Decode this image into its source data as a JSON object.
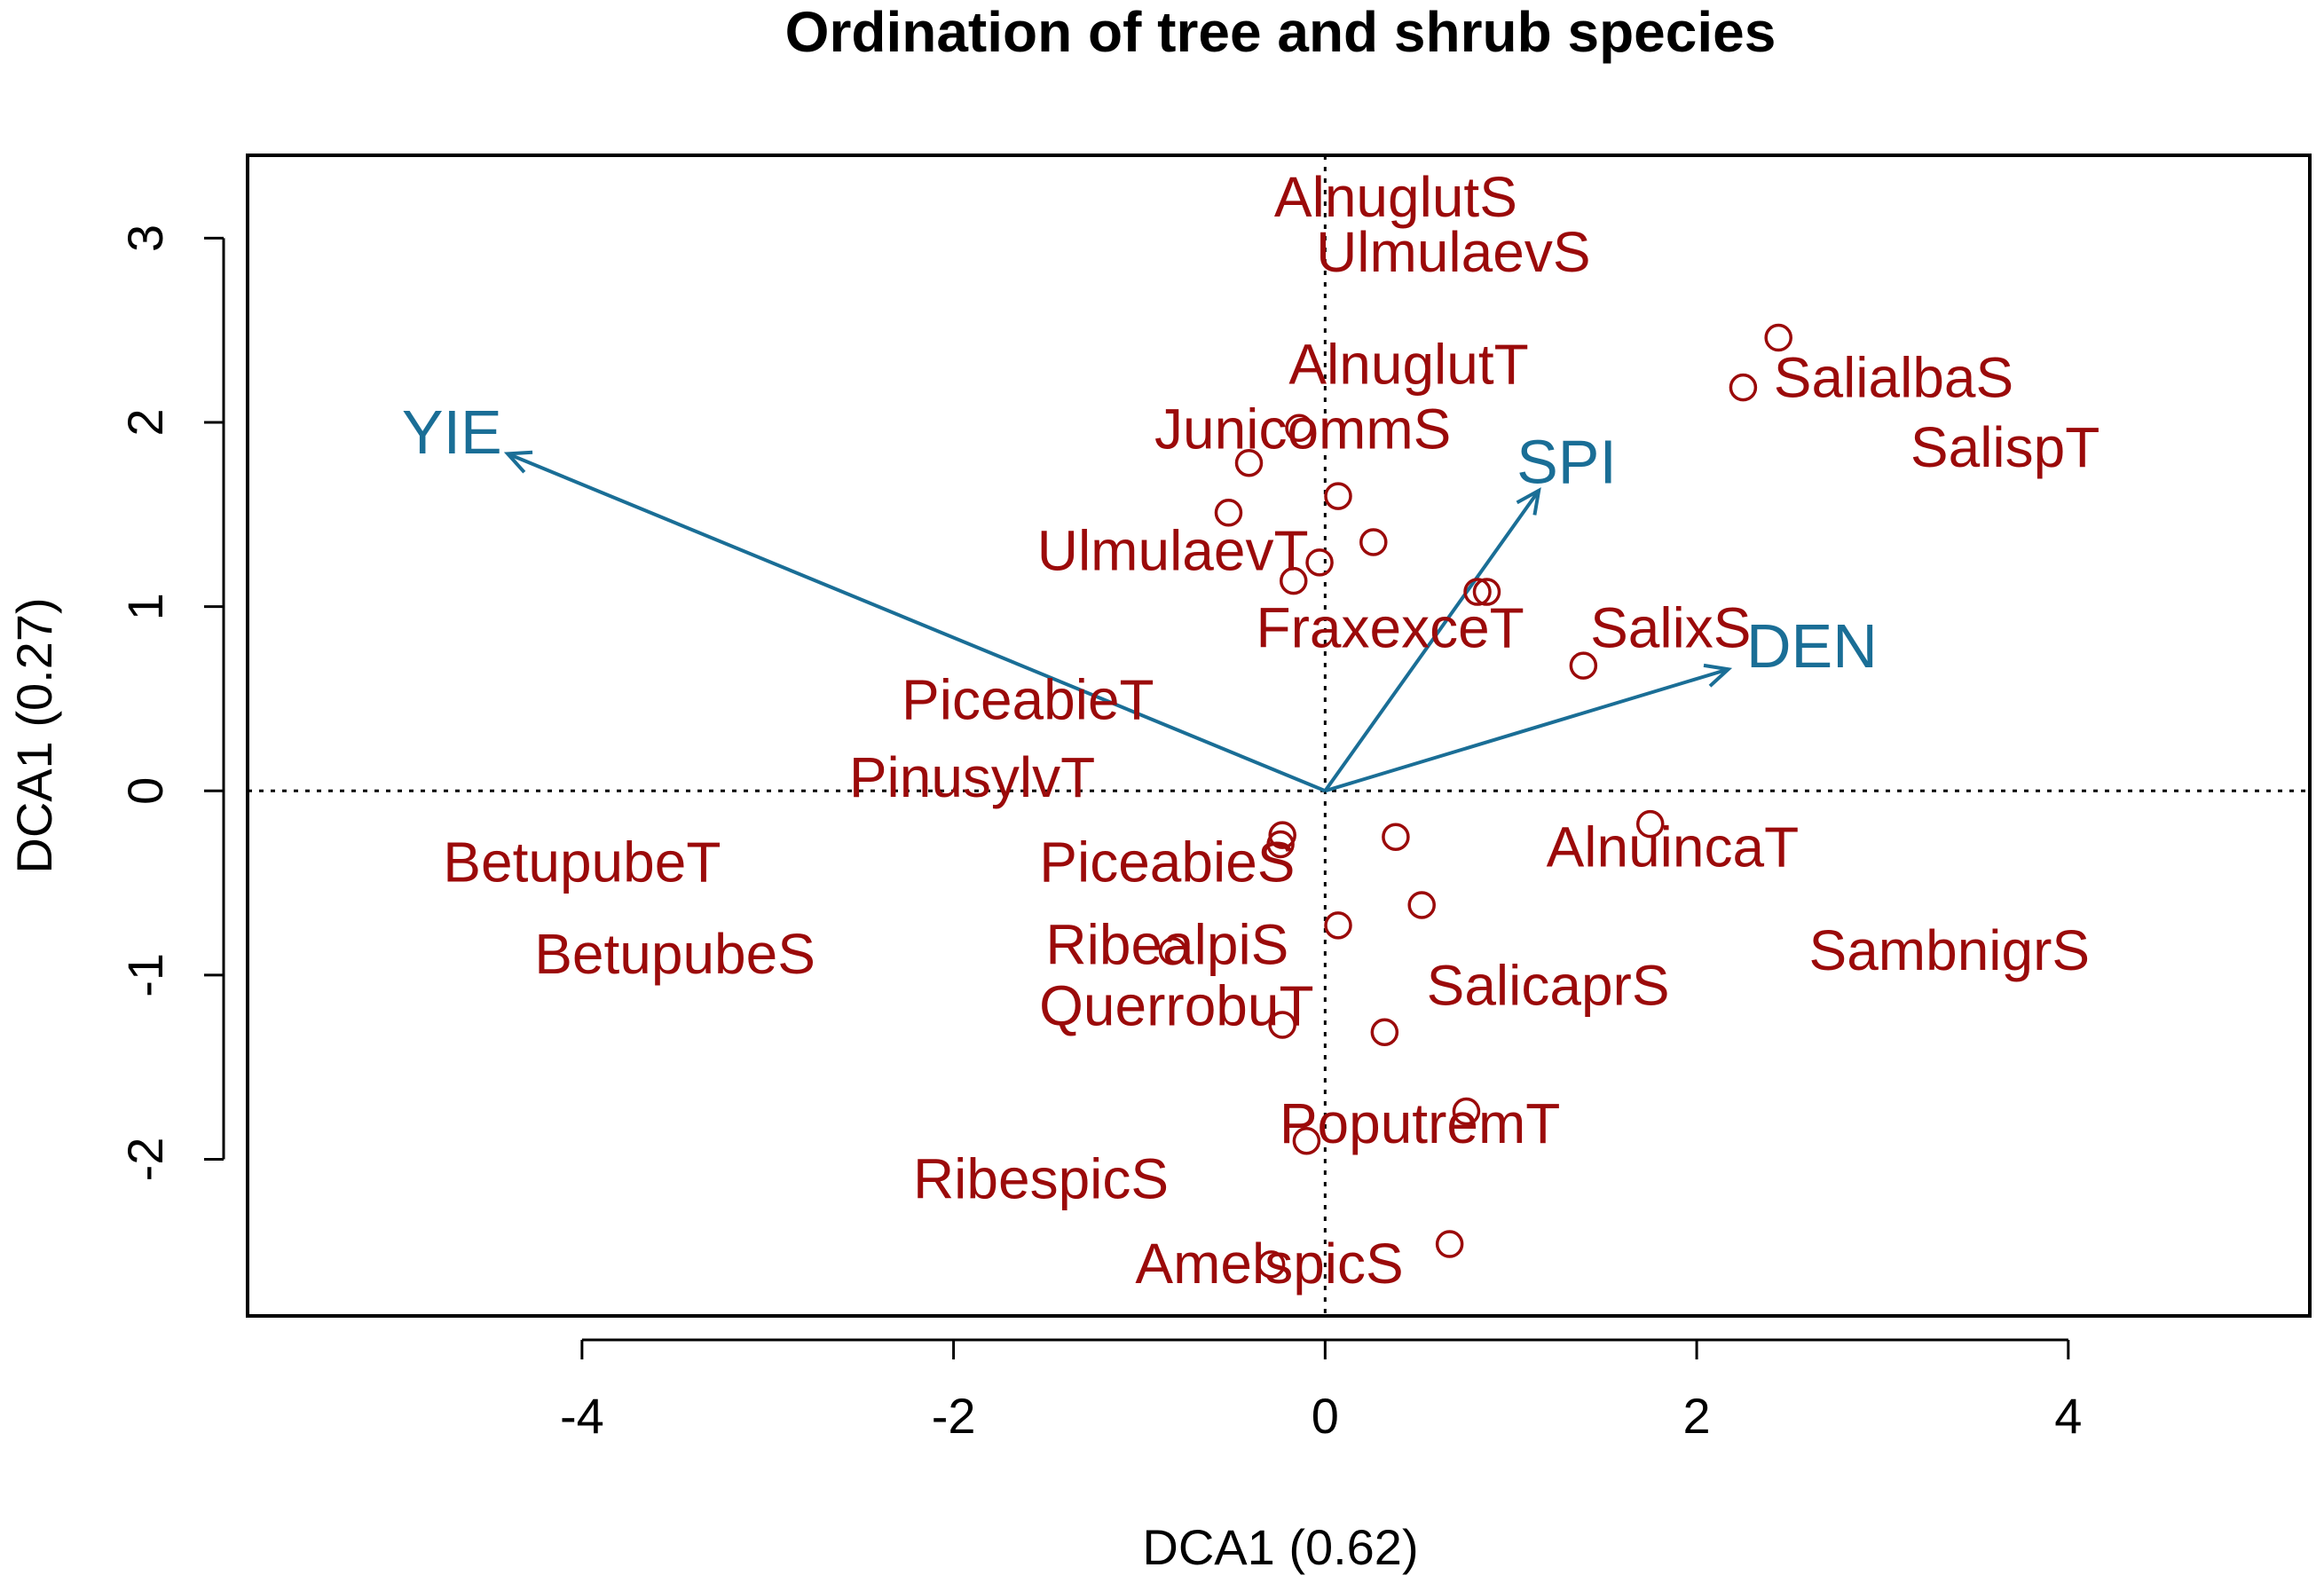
{
  "chart_data": {
    "type": "scatter",
    "title": "Ordination of tree and shrub species",
    "xlabel": "DCA1 (0.62)",
    "ylabel": "DCA1 (0.27)",
    "xlim": [
      -5.8,
      5.3
    ],
    "ylim": [
      -2.85,
      3.45
    ],
    "xticks": [
      -4,
      -2,
      0,
      2,
      4
    ],
    "yticks": [
      -2,
      -1,
      0,
      1,
      2,
      3
    ],
    "origin_lines": true,
    "species_color": "#9B0A0A",
    "vector_color": "#1A6E96",
    "sites": [
      {
        "x": 2.44,
        "y": 2.46
      },
      {
        "x": 2.25,
        "y": 2.19
      },
      {
        "x": -0.14,
        "y": 1.97
      },
      {
        "x": -0.41,
        "y": 1.78
      },
      {
        "x": 0.07,
        "y": 1.6
      },
      {
        "x": -0.52,
        "y": 1.51
      },
      {
        "x": 0.26,
        "y": 1.35
      },
      {
        "x": -0.03,
        "y": 1.24
      },
      {
        "x": -0.17,
        "y": 1.14
      },
      {
        "x": 0.82,
        "y": 1.08
      },
      {
        "x": 0.87,
        "y": 1.08
      },
      {
        "x": 1.39,
        "y": 0.68
      },
      {
        "x": -0.23,
        "y": -0.24
      },
      {
        "x": -0.24,
        "y": -0.29
      },
      {
        "x": 0.38,
        "y": -0.25
      },
      {
        "x": 1.75,
        "y": -0.18
      },
      {
        "x": 0.52,
        "y": -0.62
      },
      {
        "x": 0.07,
        "y": -0.73
      },
      {
        "x": -0.82,
        "y": -0.87
      },
      {
        "x": -0.23,
        "y": -1.27
      },
      {
        "x": 0.32,
        "y": -1.31
      },
      {
        "x": 0.76,
        "y": -1.74
      },
      {
        "x": -0.1,
        "y": -1.9
      },
      {
        "x": 0.67,
        "y": -2.46
      },
      {
        "x": -0.29,
        "y": -2.57
      }
    ],
    "species": [
      {
        "label": "AlnuglutS",
        "x": 0.38,
        "y": 3.2
      },
      {
        "label": "UlmulaevS",
        "x": 0.69,
        "y": 2.9
      },
      {
        "label": "AlnuglutT",
        "x": 0.45,
        "y": 2.29
      },
      {
        "label": "SalialbaS",
        "x": 3.06,
        "y": 2.22
      },
      {
        "label": "JunicommS",
        "x": -0.12,
        "y": 1.94
      },
      {
        "label": "SalispT",
        "x": 3.66,
        "y": 1.84
      },
      {
        "label": "UlmulaevT",
        "x": -0.82,
        "y": 1.28
      },
      {
        "label": "FraxexceT",
        "x": 0.35,
        "y": 0.86
      },
      {
        "label": "SalixS",
        "x": 1.86,
        "y": 0.86
      },
      {
        "label": "PiceabieT",
        "x": -1.6,
        "y": 0.47
      },
      {
        "label": "PinusylvT",
        "x": -1.9,
        "y": 0.05
      },
      {
        "label": "BetupubeT",
        "x": -4.0,
        "y": -0.41
      },
      {
        "label": "PiceabieS",
        "x": -0.85,
        "y": -0.41
      },
      {
        "label": "AlnuincaT",
        "x": 1.87,
        "y": -0.33
      },
      {
        "label": "BetupubeS",
        "x": -3.5,
        "y": -0.91
      },
      {
        "label": "RibealpiS",
        "x": -0.85,
        "y": -0.86
      },
      {
        "label": "SambnigrS",
        "x": 3.36,
        "y": -0.89
      },
      {
        "label": "SalicaprS",
        "x": 1.2,
        "y": -1.08
      },
      {
        "label": "QuerrobuT",
        "x": -0.8,
        "y": -1.19
      },
      {
        "label": "PoputremT",
        "x": 0.51,
        "y": -1.83
      },
      {
        "label": "RibespicS",
        "x": -1.53,
        "y": -2.13
      },
      {
        "label": "AmelspicS",
        "x": -0.3,
        "y": -2.59
      }
    ],
    "vectors": [
      {
        "label": "YIE",
        "x": -4.4,
        "y": 1.83,
        "label_x": -4.7,
        "label_y": 1.92
      },
      {
        "label": "SPI",
        "x": 1.15,
        "y": 1.63,
        "label_x": 1.3,
        "label_y": 1.76
      },
      {
        "label": "DEN",
        "x": 2.17,
        "y": 0.66,
        "label_x": 2.62,
        "label_y": 0.76
      }
    ]
  }
}
